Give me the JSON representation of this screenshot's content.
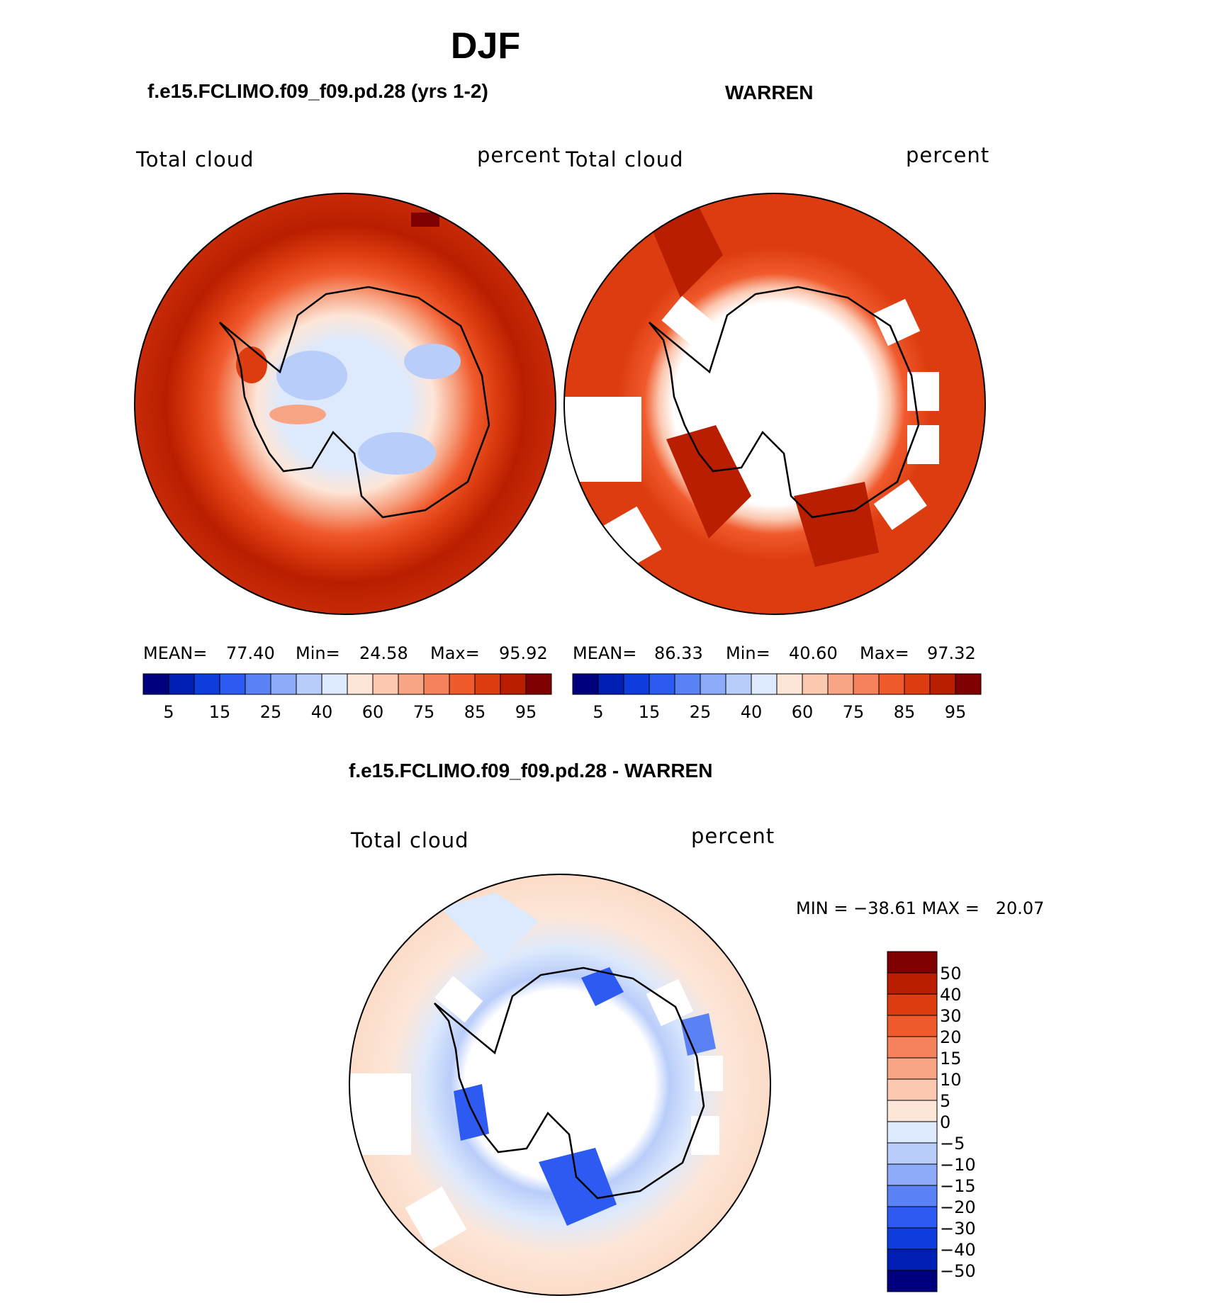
{
  "page": {
    "title": "DJF",
    "panel_left_title": "f.e15.FCLIMO.f09_f09.pd.28 (yrs 1-2)",
    "panel_right_title": "WARREN",
    "panel_diff_title": "f.e15.FCLIMO.f09_f09.pd.28 - WARREN"
  },
  "chart_data": [
    {
      "type": "heatmap",
      "projection": "south polar stereographic",
      "title": "f.e15.FCLIMO.f09_f09.pd.28 (yrs 1-2)",
      "variable": "Total cloud",
      "units": "percent",
      "stats": {
        "mean_label": "MEAN=",
        "mean": "77.40",
        "min_label": "Min=",
        "min": "24.58",
        "max_label": "Max=",
        "max": "95.92"
      },
      "colorbar_ticks": [
        "5",
        "15",
        "25",
        "40",
        "60",
        "75",
        "85",
        "95"
      ],
      "colorbar_colors": [
        "#00007f",
        "#001eb4",
        "#0f3cdc",
        "#2d5af0",
        "#5a82f5",
        "#8caaf7",
        "#b9cdfa",
        "#dde9fc",
        "#fde6d8",
        "#fbc8b0",
        "#f7a585",
        "#f5825a",
        "#f05a2d",
        "#dc3c0f",
        "#b91e00",
        "#7f0000"
      ]
    },
    {
      "type": "heatmap",
      "projection": "south polar stereographic",
      "title": "WARREN",
      "variable": "Total cloud",
      "units": "percent",
      "stats": {
        "mean_label": "MEAN=",
        "mean": "86.33",
        "min_label": "Min=",
        "min": "40.60",
        "max_label": "Max=",
        "max": "97.32"
      },
      "colorbar_ticks": [
        "5",
        "15",
        "25",
        "40",
        "60",
        "75",
        "85",
        "95"
      ],
      "colorbar_colors": [
        "#00007f",
        "#001eb4",
        "#0f3cdc",
        "#2d5af0",
        "#5a82f5",
        "#8caaf7",
        "#b9cdfa",
        "#dde9fc",
        "#fde6d8",
        "#fbc8b0",
        "#f7a585",
        "#f5825a",
        "#f05a2d",
        "#dc3c0f",
        "#b91e00",
        "#7f0000"
      ]
    },
    {
      "type": "heatmap",
      "projection": "south polar stereographic",
      "title": "f.e15.FCLIMO.f09_f09.pd.28 - WARREN",
      "variable": "Total cloud",
      "units": "percent",
      "stats_text": "MIN = −38.61 MAX =   20.07",
      "colorbar_ticks": [
        "50",
        "40",
        "30",
        "20",
        "15",
        "10",
        "5",
        "0",
        "−5",
        "−10",
        "−15",
        "−20",
        "−30",
        "−40",
        "−50"
      ],
      "colorbar_colors": [
        "#7f0000",
        "#b91e00",
        "#dc3c0f",
        "#f05a2d",
        "#f5825a",
        "#f7a585",
        "#fbc8b0",
        "#fde6d8",
        "#dde9fc",
        "#b9cdfa",
        "#8caaf7",
        "#5a82f5",
        "#2d5af0",
        "#0f3cdc",
        "#001eb4",
        "#00007f"
      ]
    }
  ]
}
